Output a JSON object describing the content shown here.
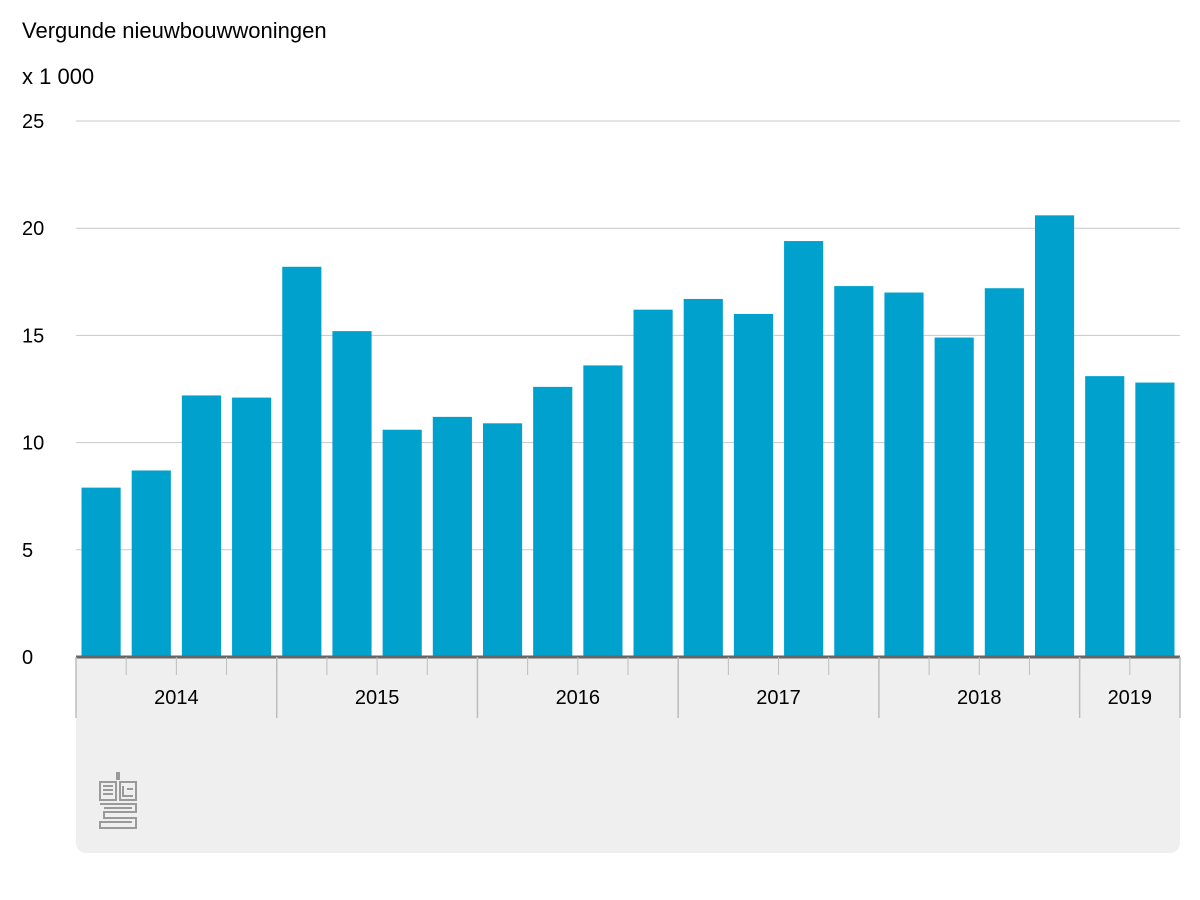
{
  "chart_data": {
    "type": "bar",
    "title": "Vergunde nieuwbouwwoningen",
    "unit_label": "x 1 000",
    "ylim": [
      0,
      25
    ],
    "yticks": [
      "0",
      "5",
      "10",
      "15",
      "20",
      "25"
    ],
    "grid": true,
    "bar_color": "#00a1cd",
    "groups": [
      {
        "label": "2014",
        "count": 4
      },
      {
        "label": "2015",
        "count": 4
      },
      {
        "label": "2016",
        "count": 4
      },
      {
        "label": "2017",
        "count": 4
      },
      {
        "label": "2018",
        "count": 4
      },
      {
        "label": "2019",
        "count": 2
      }
    ],
    "values": [
      7.9,
      8.7,
      12.2,
      12.1,
      18.2,
      15.2,
      10.6,
      11.2,
      10.9,
      12.6,
      13.6,
      16.2,
      16.7,
      16.0,
      19.4,
      17.3,
      17.0,
      14.9,
      17.2,
      20.6,
      13.1,
      12.8
    ]
  },
  "logo": {
    "icon": "cbs-logo-icon"
  }
}
